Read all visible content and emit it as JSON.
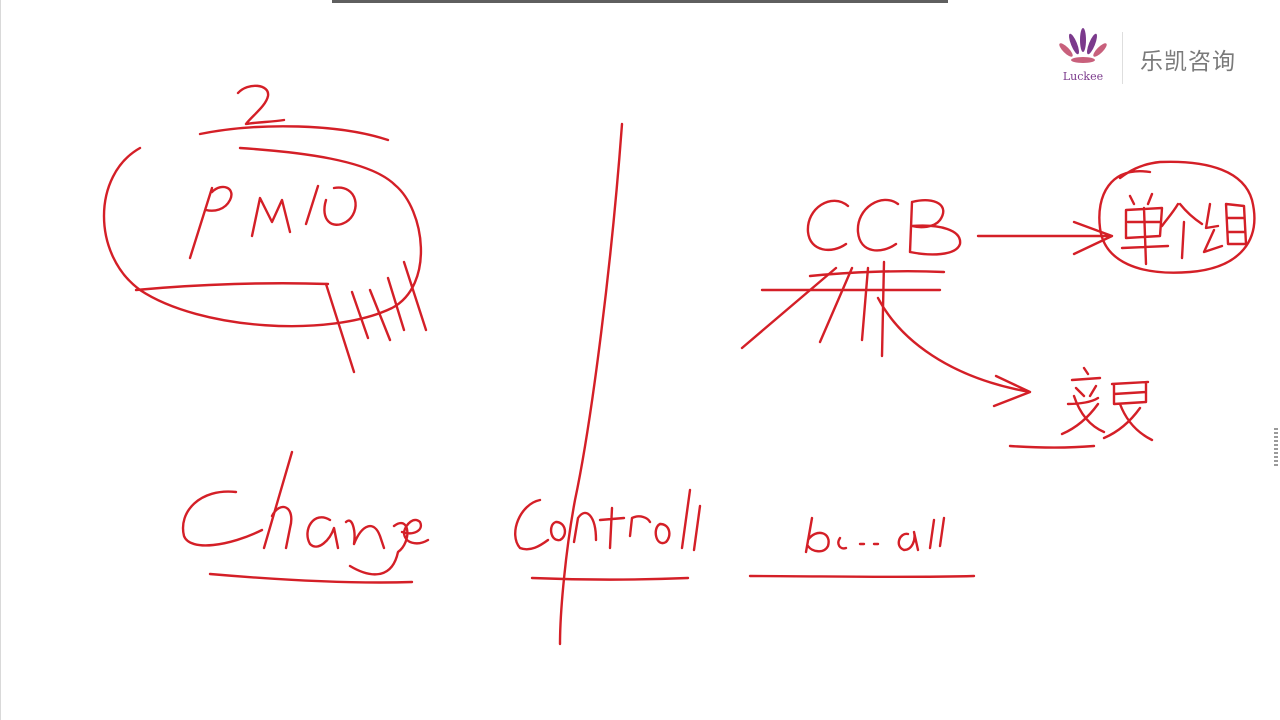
{
  "logo": {
    "brand_name": "乐凯咨询",
    "brand_latin": "Luckee",
    "accent_color": "#7b3a8c"
  },
  "whiteboard": {
    "ink_color": "#d41f27",
    "background": "#ffffff"
  }
}
